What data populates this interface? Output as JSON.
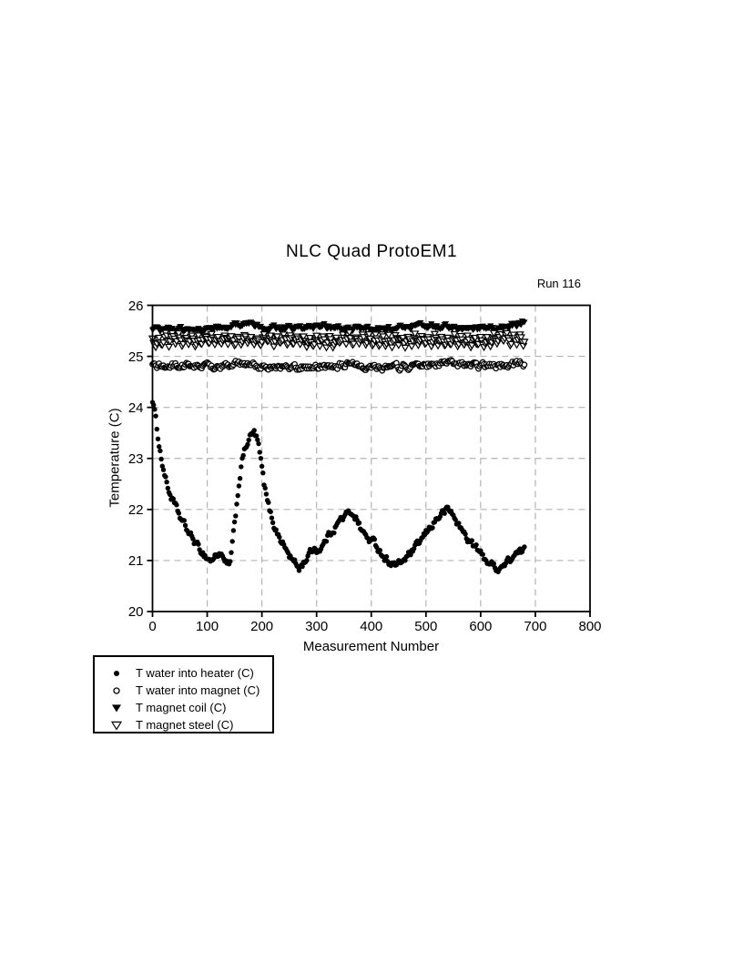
{
  "chart": {
    "title": "NLC Quad ProtoEM1",
    "run_label": "Run 116",
    "x_axis": {
      "label": "Measurement Number"
    },
    "y_axis": {
      "label": "Temperature (C)"
    },
    "colors": {
      "foreground": "#000000",
      "grid": "#b3b3b3",
      "background": "#ffffff"
    }
  },
  "chart_data": {
    "type": "scatter",
    "title": "NLC Quad ProtoEM1",
    "annotation": "Run 116",
    "xlabel": "Measurement Number",
    "ylabel": "Temperature (C)",
    "xlim": [
      0,
      800
    ],
    "ylim": [
      20,
      26
    ],
    "x_ticks": [
      0,
      100,
      200,
      300,
      400,
      500,
      600,
      700,
      800
    ],
    "y_ticks": [
      20,
      21,
      22,
      23,
      24,
      25,
      26
    ],
    "grid": "dashed-gray-both-axes",
    "frame": "full-box",
    "legend_position": "below-plot-left",
    "x_data_max": 680,
    "series": [
      {
        "name": "T water into heater (C)",
        "marker": "filled-circle",
        "x_step": 2,
        "noise": 0.06,
        "keypoints": [
          [
            0,
            24.15
          ],
          [
            3,
            24.0
          ],
          [
            6,
            23.75
          ],
          [
            9,
            23.5
          ],
          [
            12,
            23.3
          ],
          [
            16,
            23.0
          ],
          [
            20,
            22.8
          ],
          [
            25,
            22.55
          ],
          [
            30,
            22.35
          ],
          [
            36,
            22.2
          ],
          [
            42,
            22.05
          ],
          [
            50,
            21.85
          ],
          [
            58,
            21.7
          ],
          [
            66,
            21.55
          ],
          [
            75,
            21.4
          ],
          [
            84,
            21.25
          ],
          [
            92,
            21.15
          ],
          [
            100,
            21.05
          ],
          [
            108,
            21.0
          ],
          [
            116,
            21.1
          ],
          [
            124,
            21.15
          ],
          [
            130,
            21.0
          ],
          [
            136,
            20.9
          ],
          [
            142,
            20.95
          ],
          [
            146,
            21.3
          ],
          [
            150,
            21.7
          ],
          [
            154,
            22.1
          ],
          [
            158,
            22.5
          ],
          [
            162,
            22.85
          ],
          [
            166,
            23.05
          ],
          [
            170,
            23.2
          ],
          [
            175,
            23.35
          ],
          [
            180,
            23.45
          ],
          [
            186,
            23.5
          ],
          [
            192,
            23.35
          ],
          [
            196,
            23.1
          ],
          [
            200,
            22.8
          ],
          [
            204,
            22.5
          ],
          [
            209,
            22.2
          ],
          [
            215,
            21.95
          ],
          [
            222,
            21.7
          ],
          [
            230,
            21.5
          ],
          [
            240,
            21.3
          ],
          [
            250,
            21.1
          ],
          [
            260,
            20.95
          ],
          [
            268,
            20.85
          ],
          [
            276,
            20.95
          ],
          [
            285,
            21.1
          ],
          [
            295,
            21.25
          ],
          [
            303,
            21.2
          ],
          [
            312,
            21.3
          ],
          [
            322,
            21.5
          ],
          [
            333,
            21.65
          ],
          [
            344,
            21.8
          ],
          [
            355,
            21.9
          ],
          [
            365,
            21.95
          ],
          [
            372,
            21.85
          ],
          [
            380,
            21.65
          ],
          [
            388,
            21.5
          ],
          [
            397,
            21.4
          ],
          [
            406,
            21.35
          ],
          [
            415,
            21.2
          ],
          [
            425,
            21.05
          ],
          [
            436,
            20.95
          ],
          [
            448,
            20.9
          ],
          [
            458,
            21.0
          ],
          [
            468,
            21.1
          ],
          [
            478,
            21.2
          ],
          [
            488,
            21.35
          ],
          [
            498,
            21.5
          ],
          [
            508,
            21.65
          ],
          [
            518,
            21.8
          ],
          [
            528,
            21.9
          ],
          [
            538,
            22.0
          ],
          [
            546,
            21.95
          ],
          [
            554,
            21.8
          ],
          [
            562,
            21.65
          ],
          [
            572,
            21.5
          ],
          [
            582,
            21.35
          ],
          [
            592,
            21.25
          ],
          [
            602,
            21.1
          ],
          [
            612,
            21.0
          ],
          [
            622,
            20.9
          ],
          [
            632,
            20.85
          ],
          [
            642,
            20.9
          ],
          [
            652,
            21.0
          ],
          [
            662,
            21.1
          ],
          [
            672,
            21.15
          ],
          [
            680,
            21.2
          ]
        ]
      },
      {
        "name": "T water into magnet (C)",
        "marker": "open-circle",
        "x_step": 2,
        "noise": 0.05,
        "keypoints": [
          [
            0,
            24.8
          ],
          [
            60,
            24.82
          ],
          [
            120,
            24.8
          ],
          [
            160,
            24.85
          ],
          [
            200,
            24.8
          ],
          [
            250,
            24.77
          ],
          [
            300,
            24.8
          ],
          [
            350,
            24.83
          ],
          [
            400,
            24.8
          ],
          [
            450,
            24.79
          ],
          [
            500,
            24.83
          ],
          [
            545,
            24.86
          ],
          [
            590,
            24.8
          ],
          [
            640,
            24.82
          ],
          [
            680,
            24.85
          ]
        ]
      },
      {
        "name": "T magnet coil (C)",
        "marker": "filled-triangle-down",
        "x_step": 2,
        "noise": 0.045,
        "keypoints": [
          [
            0,
            25.53
          ],
          [
            40,
            25.51
          ],
          [
            80,
            25.53
          ],
          [
            115,
            25.55
          ],
          [
            145,
            25.62
          ],
          [
            175,
            25.6
          ],
          [
            210,
            25.56
          ],
          [
            260,
            25.55
          ],
          [
            310,
            25.58
          ],
          [
            360,
            25.55
          ],
          [
            410,
            25.53
          ],
          [
            460,
            25.56
          ],
          [
            505,
            25.6
          ],
          [
            550,
            25.56
          ],
          [
            600,
            25.55
          ],
          [
            640,
            25.57
          ],
          [
            665,
            25.62
          ],
          [
            680,
            25.7
          ]
        ]
      },
      {
        "name": "T magnet steel (C)",
        "marker": "open-triangle-down",
        "x_step": 2,
        "noise": 0.05,
        "wave": {
          "period": 12,
          "amplitude": 0.09
        },
        "keypoints": [
          [
            0,
            25.3
          ],
          [
            150,
            25.33
          ],
          [
            300,
            25.3
          ],
          [
            450,
            25.32
          ],
          [
            600,
            25.3
          ],
          [
            680,
            25.35
          ]
        ]
      }
    ]
  }
}
